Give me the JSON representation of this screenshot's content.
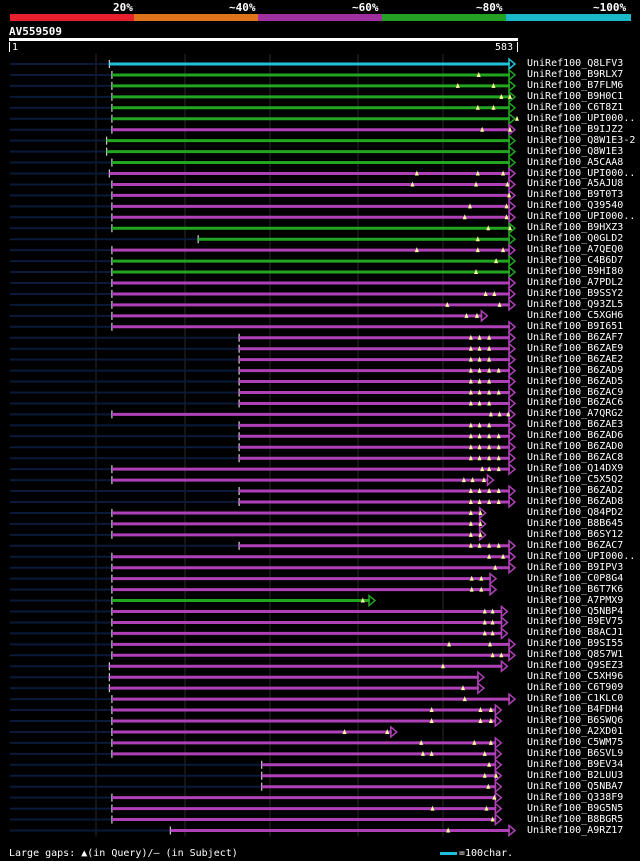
{
  "legend": {
    "labels": [
      "20%",
      "~40%",
      "~60%",
      "~80%",
      "~100%"
    ],
    "colors": [
      "#e8202e",
      "#e0741c",
      "#a030a0",
      "#24a024",
      "#1ab8c8"
    ]
  },
  "query": {
    "id": "AV559509",
    "start": "1",
    "end": "583",
    "length": 583
  },
  "colors": {
    "cyan": "#22c0d8",
    "green": "#22a622",
    "magenta": "#b040b8",
    "marker": "#ffff99",
    "grid": "#2a2a2a",
    "unaligned": "#0a1a3a"
  },
  "hits": [
    {
      "label": "UniRef100_Q8LFV3",
      "start": 115,
      "end": 583,
      "color": "cyan",
      "gaps": []
    },
    {
      "label": "UniRef100_B9RLX7",
      "start": 118,
      "end": 583,
      "color": "green",
      "gaps": [
        539
      ]
    },
    {
      "label": "UniRef100_B7FLM6",
      "start": 118,
      "end": 583,
      "color": "green",
      "gaps": [
        515,
        556
      ]
    },
    {
      "label": "UniRef100_B9H0C1",
      "start": 118,
      "end": 583,
      "color": "green",
      "gaps": [
        565,
        575
      ]
    },
    {
      "label": "UniRef100_C6T8Z1",
      "start": 118,
      "end": 583,
      "color": "green",
      "gaps": [
        538,
        556
      ]
    },
    {
      "label": "UniRef100_UPI000..",
      "start": 118,
      "end": 583,
      "color": "green",
      "gaps": [
        583
      ]
    },
    {
      "label": "UniRef100_B9IJZ2",
      "start": 118,
      "end": 583,
      "color": "magenta",
      "gaps": [
        543,
        575
      ]
    },
    {
      "label": "UniRef100_Q8W1E3-2",
      "start": 112,
      "end": 595,
      "color": "green",
      "gaps": []
    },
    {
      "label": "UniRef100_Q8W1E3",
      "start": 112,
      "end": 595,
      "color": "green",
      "gaps": []
    },
    {
      "label": "UniRef100_A5CAA8",
      "start": 118,
      "end": 583,
      "color": "green",
      "gaps": []
    },
    {
      "label": "UniRef100_UPI000..",
      "start": 115,
      "end": 583,
      "color": "magenta",
      "gaps": [
        468,
        538,
        567
      ]
    },
    {
      "label": "UniRef100_A5AJU8",
      "start": 118,
      "end": 583,
      "color": "magenta",
      "gaps": [
        463,
        536,
        572
      ]
    },
    {
      "label": "UniRef100_B9T0T3",
      "start": 118,
      "end": 583,
      "color": "magenta",
      "gaps": [
        574
      ]
    },
    {
      "label": "UniRef100_Q39540",
      "start": 118,
      "end": 583,
      "color": "magenta",
      "gaps": [
        529,
        571
      ]
    },
    {
      "label": "UniRef100_UPI000..",
      "start": 118,
      "end": 583,
      "color": "magenta",
      "gaps": [
        523,
        571
      ]
    },
    {
      "label": "UniRef100_B9HXZ3",
      "start": 118,
      "end": 583,
      "color": "green",
      "gaps": [
        550,
        575
      ]
    },
    {
      "label": "UniRef100_Q0GLD2",
      "start": 217,
      "end": 583,
      "color": "green",
      "gaps": [
        538
      ]
    },
    {
      "label": "UniRef100_A7QEQ0",
      "start": 118,
      "end": 583,
      "color": "magenta",
      "gaps": [
        468,
        538,
        567
      ]
    },
    {
      "label": "UniRef100_C4B6D7",
      "start": 118,
      "end": 583,
      "color": "green",
      "gaps": [
        559
      ]
    },
    {
      "label": "UniRef100_B9HI80",
      "start": 118,
      "end": 583,
      "color": "green",
      "gaps": [
        536
      ]
    },
    {
      "label": "UniRef100_A7PDL2",
      "start": 118,
      "end": 583,
      "color": "magenta",
      "gaps": []
    },
    {
      "label": "UniRef100_B9SSY2",
      "start": 118,
      "end": 583,
      "color": "magenta",
      "gaps": [
        547,
        557
      ]
    },
    {
      "label": "UniRef100_Q93ZL5",
      "start": 118,
      "end": 583,
      "color": "magenta",
      "gaps": [
        503,
        563
      ]
    },
    {
      "label": "UniRef100_C5XGH6",
      "start": 118,
      "end": 549,
      "color": "magenta",
      "gaps": [
        525,
        537
      ]
    },
    {
      "label": "UniRef100_B9I651",
      "start": 118,
      "end": 595,
      "color": "magenta",
      "gaps": []
    },
    {
      "label": "UniRef100_B6ZAF7",
      "start": 264,
      "end": 583,
      "color": "magenta",
      "gaps": [
        530,
        540,
        551
      ]
    },
    {
      "label": "UniRef100_B6ZAE9",
      "start": 264,
      "end": 583,
      "color": "magenta",
      "gaps": [
        530,
        540,
        551
      ]
    },
    {
      "label": "UniRef100_B6ZAE2",
      "start": 264,
      "end": 583,
      "color": "magenta",
      "gaps": [
        530,
        540,
        551
      ]
    },
    {
      "label": "UniRef100_B6ZAD9",
      "start": 264,
      "end": 583,
      "color": "magenta",
      "gaps": [
        530,
        540,
        551,
        562
      ]
    },
    {
      "label": "UniRef100_B6ZAD5",
      "start": 264,
      "end": 583,
      "color": "magenta",
      "gaps": [
        530,
        540,
        551
      ]
    },
    {
      "label": "UniRef100_B6ZAC9",
      "start": 264,
      "end": 583,
      "color": "magenta",
      "gaps": [
        530,
        540,
        551,
        562
      ]
    },
    {
      "label": "UniRef100_B6ZAC6",
      "start": 264,
      "end": 583,
      "color": "magenta",
      "gaps": [
        530,
        540,
        551
      ]
    },
    {
      "label": "UniRef100_A7QRG2",
      "start": 118,
      "end": 583,
      "color": "magenta",
      "gaps": [
        553,
        563,
        573
      ]
    },
    {
      "label": "UniRef100_B6ZAE3",
      "start": 264,
      "end": 583,
      "color": "magenta",
      "gaps": [
        530,
        540,
        551
      ]
    },
    {
      "label": "UniRef100_B6ZAD6",
      "start": 264,
      "end": 583,
      "color": "magenta",
      "gaps": [
        530,
        540,
        551,
        562
      ]
    },
    {
      "label": "UniRef100_B6ZAD0",
      "start": 264,
      "end": 583,
      "color": "magenta",
      "gaps": [
        530,
        540,
        551,
        562
      ]
    },
    {
      "label": "UniRef100_B6ZAC8",
      "start": 264,
      "end": 583,
      "color": "magenta",
      "gaps": [
        530,
        540,
        551,
        562
      ]
    },
    {
      "label": "UniRef100_Q14DX9",
      "start": 118,
      "end": 583,
      "color": "magenta",
      "gaps": [
        543,
        551,
        562
      ]
    },
    {
      "label": "UniRef100_C5X5Q2",
      "start": 118,
      "end": 556,
      "color": "magenta",
      "gaps": [
        522,
        532,
        545
      ]
    },
    {
      "label": "UniRef100_B6ZAD2",
      "start": 264,
      "end": 583,
      "color": "magenta",
      "gaps": [
        530,
        540,
        551,
        562
      ]
    },
    {
      "label": "UniRef100_B6ZAD8",
      "start": 264,
      "end": 583,
      "color": "magenta",
      "gaps": [
        530,
        540,
        551,
        562
      ]
    },
    {
      "label": "UniRef100_Q84PD2",
      "start": 118,
      "end": 547,
      "color": "magenta",
      "gaps": [
        530,
        541
      ]
    },
    {
      "label": "UniRef100_B8B645",
      "start": 118,
      "end": 547,
      "color": "magenta",
      "gaps": [
        530,
        541
      ]
    },
    {
      "label": "UniRef100_B6SY12",
      "start": 118,
      "end": 547,
      "color": "magenta",
      "gaps": [
        530,
        541
      ]
    },
    {
      "label": "UniRef100_B6ZAC7",
      "start": 264,
      "end": 583,
      "color": "magenta",
      "gaps": [
        530,
        540,
        551,
        562
      ]
    },
    {
      "label": "UniRef100_UPI000..",
      "start": 118,
      "end": 583,
      "color": "magenta",
      "gaps": [
        551,
        567
      ]
    },
    {
      "label": "UniRef100_B9IPV3",
      "start": 118,
      "end": 595,
      "color": "magenta",
      "gaps": [
        558
      ]
    },
    {
      "label": "UniRef100_C0P8G4",
      "start": 118,
      "end": 559,
      "color": "magenta",
      "gaps": [
        531,
        542
      ]
    },
    {
      "label": "UniRef100_B6T7K6",
      "start": 118,
      "end": 559,
      "color": "magenta",
      "gaps": [
        531,
        542
      ]
    },
    {
      "label": "UniRef100_A7PMX9",
      "start": 118,
      "end": 420,
      "color": "green",
      "gaps": [
        406
      ]
    },
    {
      "label": "UniRef100_Q5NBP4",
      "start": 118,
      "end": 572,
      "color": "magenta",
      "gaps": [
        546,
        555
      ]
    },
    {
      "label": "UniRef100_B9EV75",
      "start": 118,
      "end": 572,
      "color": "magenta",
      "gaps": [
        546,
        555
      ]
    },
    {
      "label": "UniRef100_B8ACJ1",
      "start": 118,
      "end": 572,
      "color": "magenta",
      "gaps": [
        546,
        555
      ]
    },
    {
      "label": "UniRef100_B9SI55",
      "start": 118,
      "end": 595,
      "color": "magenta",
      "gaps": [
        505,
        552
      ]
    },
    {
      "label": "UniRef100_Q8S7W1",
      "start": 118,
      "end": 583,
      "color": "magenta",
      "gaps": [
        555,
        565
      ]
    },
    {
      "label": "UniRef100_Q9SEZ3",
      "start": 115,
      "end": 572,
      "color": "magenta",
      "gaps": [
        498
      ]
    },
    {
      "label": "UniRef100_C5XH96",
      "start": 115,
      "end": 545,
      "color": "magenta",
      "gaps": []
    },
    {
      "label": "UniRef100_C6T909",
      "start": 115,
      "end": 545,
      "color": "magenta",
      "gaps": [
        521
      ]
    },
    {
      "label": "UniRef100_C1KLC0",
      "start": 118,
      "end": 595,
      "color": "magenta",
      "gaps": [
        523
      ]
    },
    {
      "label": "UniRef100_B4FDH4",
      "start": 118,
      "end": 565,
      "color": "magenta",
      "gaps": [
        485,
        541,
        553
      ]
    },
    {
      "label": "UniRef100_B6SWQ6",
      "start": 118,
      "end": 565,
      "color": "magenta",
      "gaps": [
        485,
        541,
        553
      ]
    },
    {
      "label": "UniRef100_A2XD01",
      "start": 118,
      "end": 445,
      "color": "magenta",
      "gaps": [
        385,
        434
      ]
    },
    {
      "label": "UniRef100_C5WM75",
      "start": 118,
      "end": 565,
      "color": "magenta",
      "gaps": [
        473,
        534,
        553
      ]
    },
    {
      "label": "UniRef100_B6SVL9",
      "start": 118,
      "end": 565,
      "color": "magenta",
      "gaps": [
        475,
        485,
        546
      ]
    },
    {
      "label": "UniRef100_B9EV34",
      "start": 290,
      "end": 565,
      "color": "magenta",
      "gaps": [
        551
      ]
    },
    {
      "label": "UniRef100_B2LUU3",
      "start": 290,
      "end": 565,
      "color": "magenta",
      "gaps": [
        546,
        559
      ]
    },
    {
      "label": "UniRef100_Q5NBA7",
      "start": 290,
      "end": 565,
      "color": "magenta",
      "gaps": [
        550
      ]
    },
    {
      "label": "UniRef100_Q338F9",
      "start": 118,
      "end": 565,
      "color": "magenta",
      "gaps": [
        557
      ]
    },
    {
      "label": "UniRef100_B9G5N5",
      "start": 118,
      "end": 565,
      "color": "magenta",
      "gaps": [
        486,
        548
      ]
    },
    {
      "label": "UniRef100_B8BGR5",
      "start": 118,
      "end": 565,
      "color": "magenta",
      "gaps": [
        555
      ]
    },
    {
      "label": "UniRef100_A9RZ17",
      "start": 185,
      "end": 595,
      "color": "magenta",
      "gaps": [
        504
      ]
    }
  ],
  "footer": {
    "gaps_note": "Large gaps: ▲(in Query)/— (in Subject)",
    "scale_note": "=100char."
  }
}
